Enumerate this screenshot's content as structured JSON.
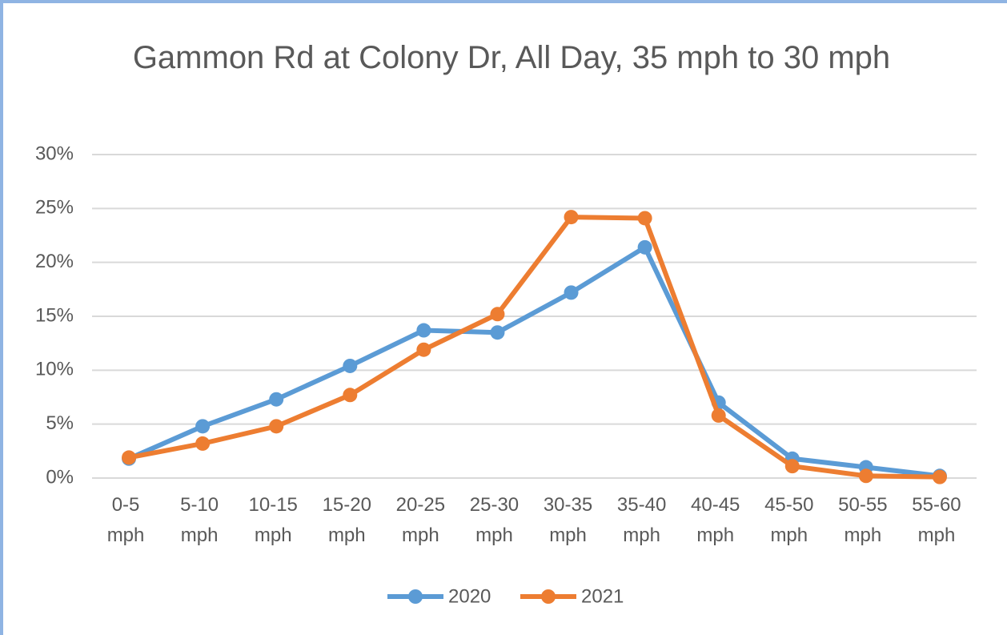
{
  "chart_data": {
    "type": "line",
    "title": "Gammon Rd at Colony Dr, All Day, 35 mph to 30 mph",
    "categories": [
      "0-5 mph",
      "5-10 mph",
      "10-15 mph",
      "15-20 mph",
      "20-25 mph",
      "25-30 mph",
      "30-35 mph",
      "35-40 mph",
      "40-45 mph",
      "45-50 mph",
      "50-55 mph",
      "55-60 mph"
    ],
    "series": [
      {
        "name": "2020",
        "color": "#5b9bd5",
        "values": [
          1.8,
          4.8,
          7.3,
          10.4,
          13.7,
          13.5,
          17.2,
          21.4,
          7.0,
          1.8,
          1.0,
          0.2
        ]
      },
      {
        "name": "2021",
        "color": "#ed7d31",
        "values": [
          1.9,
          3.2,
          4.8,
          7.7,
          11.9,
          15.2,
          24.2,
          24.1,
          5.8,
          1.1,
          0.2,
          0.1
        ]
      }
    ],
    "ylim": [
      0,
      30
    ],
    "yticks": [
      {
        "value": 0,
        "label": "0%"
      },
      {
        "value": 5,
        "label": "5%"
      },
      {
        "value": 10,
        "label": "10%"
      },
      {
        "value": 15,
        "label": "15%"
      },
      {
        "value": 20,
        "label": "20%"
      },
      {
        "value": 25,
        "label": "25%"
      },
      {
        "value": 30,
        "label": "30%"
      }
    ],
    "grid": true,
    "legend": "bottom"
  }
}
